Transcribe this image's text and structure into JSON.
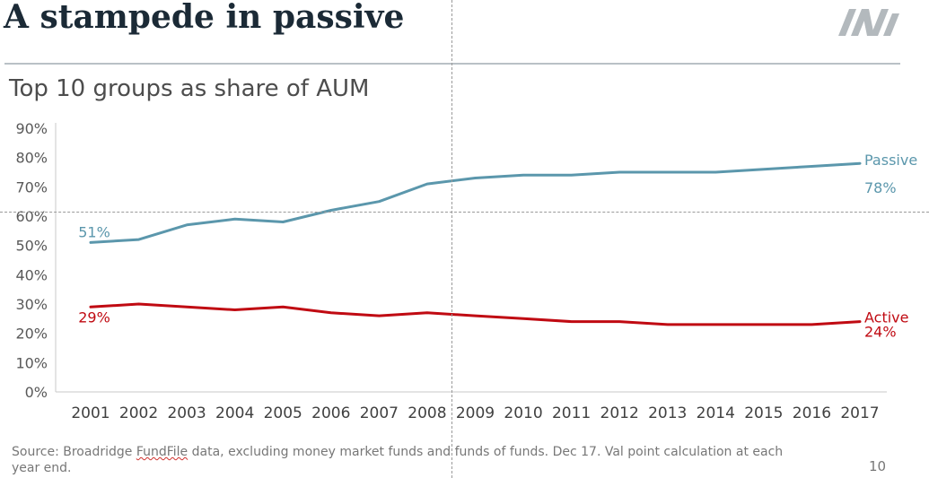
{
  "slide": {
    "title": "A stampede in passive",
    "subtitle": "Top 10 groups as share of AUM",
    "footnote_part1": "Source: Broadridge ",
    "footnote_underlined": "FundFile",
    "footnote_part2": " data, excluding money market funds and funds of funds. Dec 17. Val point calculation at each year end.",
    "page_number": "10"
  },
  "logo": {
    "icon": "brand-logo-icon",
    "color": "#b3b9bd"
  },
  "chart_data": {
    "type": "line",
    "categories": [
      "2001",
      "2002",
      "2003",
      "2004",
      "2005",
      "2006",
      "2007",
      "2008",
      "2009",
      "2010",
      "2011",
      "2012",
      "2013",
      "2014",
      "2015",
      "2016",
      "2017"
    ],
    "series": [
      {
        "name": "Passive",
        "color": "#5b97ac",
        "values": [
          51,
          52,
          57,
          59,
          58,
          62,
          65,
          71,
          73,
          74,
          74,
          75,
          75,
          75,
          76,
          77,
          78
        ],
        "start_label": "51%",
        "end_label": "78%"
      },
      {
        "name": "Active",
        "color": "#c00a12",
        "values": [
          29,
          30,
          29,
          28,
          29,
          27,
          26,
          27,
          26,
          25,
          24,
          24,
          23,
          23,
          23,
          23,
          24
        ],
        "start_label": "29%",
        "end_label": "24%"
      }
    ],
    "yticks": [
      "0%",
      "10%",
      "20%",
      "30%",
      "40%",
      "50%",
      "60%",
      "70%",
      "80%",
      "90%"
    ],
    "ylim": [
      0,
      90
    ],
    "grid": false,
    "legend": "inline-right"
  }
}
